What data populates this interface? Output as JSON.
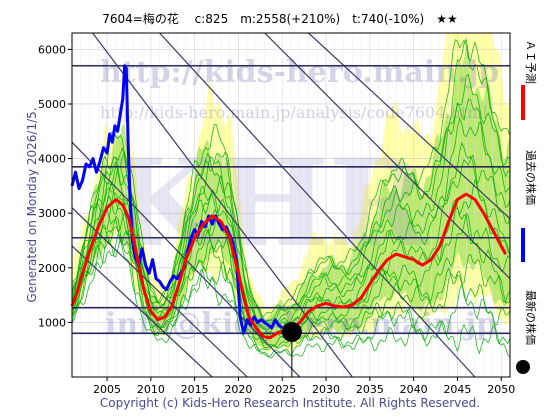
{
  "chart_data": {
    "type": "line",
    "title": "7604=梅の花　 c:825　m:2558(+210%)　t:740(-10%)　★★",
    "xlabel": "",
    "ylabel": "",
    "xlim": [
      2001,
      2051
    ],
    "ylim": [
      0,
      6300
    ],
    "x_ticks": [
      2005,
      2010,
      2015,
      2020,
      2025,
      2030,
      2035,
      2040,
      2045,
      2050
    ],
    "y_ticks": [
      1000,
      2000,
      3000,
      4000,
      5000,
      6000
    ],
    "grid": true,
    "legend_position": "right (vertical)",
    "current_price": 825,
    "current_year": 2026.1,
    "horizontal_levels": [
      5700,
      3850,
      2550,
      1270,
      800
    ],
    "series": [
      {
        "name": "過去の株価",
        "color": "#0000ff",
        "points": [
          [
            2001,
            3500
          ],
          [
            2001.4,
            3750
          ],
          [
            2001.8,
            3450
          ],
          [
            2002.2,
            3600
          ],
          [
            2002.6,
            3900
          ],
          [
            2003,
            3850
          ],
          [
            2003.4,
            4000
          ],
          [
            2003.8,
            3750
          ],
          [
            2004.2,
            3950
          ],
          [
            2004.6,
            4200
          ],
          [
            2005,
            4100
          ],
          [
            2005.3,
            4450
          ],
          [
            2005.6,
            4300
          ],
          [
            2005.9,
            4600
          ],
          [
            2006.2,
            4500
          ],
          [
            2006.5,
            4800
          ],
          [
            2006.8,
            5100
          ],
          [
            2007.0,
            5700
          ],
          [
            2007.2,
            5650
          ],
          [
            2007.4,
            4300
          ],
          [
            2007.6,
            3400
          ],
          [
            2007.9,
            2500
          ],
          [
            2008.2,
            2200
          ],
          [
            2008.6,
            2050
          ],
          [
            2009,
            2350
          ],
          [
            2009.4,
            2050
          ],
          [
            2009.8,
            1900
          ],
          [
            2010.2,
            2150
          ],
          [
            2010.6,
            1800
          ],
          [
            2011,
            1750
          ],
          [
            2011.4,
            1650
          ],
          [
            2011.8,
            1600
          ],
          [
            2012.2,
            1750
          ],
          [
            2012.6,
            1850
          ],
          [
            2013,
            1800
          ],
          [
            2013.4,
            1900
          ],
          [
            2013.8,
            2000
          ],
          [
            2014.2,
            2300
          ],
          [
            2014.6,
            2550
          ],
          [
            2015,
            2700
          ],
          [
            2015.4,
            2600
          ],
          [
            2015.8,
            2850
          ],
          [
            2016.2,
            2750
          ],
          [
            2016.6,
            2950
          ],
          [
            2017,
            2800
          ],
          [
            2017.4,
            2950
          ],
          [
            2017.8,
            2800
          ],
          [
            2018.2,
            2700
          ],
          [
            2018.6,
            2750
          ],
          [
            2019,
            2600
          ],
          [
            2019.4,
            2450
          ],
          [
            2019.8,
            2100
          ],
          [
            2020.2,
            1100
          ],
          [
            2020.6,
            800
          ],
          [
            2021,
            1050
          ],
          [
            2021.4,
            950
          ],
          [
            2021.8,
            1100
          ],
          [
            2022.2,
            1000
          ],
          [
            2022.6,
            1050
          ],
          [
            2023,
            1000
          ],
          [
            2023.4,
            950
          ],
          [
            2023.8,
            900
          ],
          [
            2024.2,
            1050
          ],
          [
            2024.6,
            950
          ],
          [
            2025,
            900
          ]
        ]
      },
      {
        "name": "ＡＩ予測",
        "color": "#ff0000",
        "points": [
          [
            2001,
            1300
          ],
          [
            2001.5,
            1500
          ],
          [
            2002,
            1800
          ],
          [
            2003,
            2300
          ],
          [
            2004,
            2750
          ],
          [
            2005,
            3100
          ],
          [
            2006,
            3250
          ],
          [
            2006.8,
            3150
          ],
          [
            2007.5,
            2900
          ],
          [
            2008,
            2550
          ],
          [
            2008.6,
            2050
          ],
          [
            2009.2,
            1600
          ],
          [
            2010,
            1200
          ],
          [
            2010.8,
            1050
          ],
          [
            2011.6,
            1100
          ],
          [
            2012.4,
            1300
          ],
          [
            2013.2,
            1700
          ],
          [
            2014,
            2150
          ],
          [
            2015,
            2550
          ],
          [
            2016,
            2800
          ],
          [
            2017,
            2950
          ],
          [
            2018,
            2850
          ],
          [
            2019,
            2550
          ],
          [
            2020,
            1900
          ],
          [
            2020.6,
            1450
          ],
          [
            2021.2,
            1100
          ],
          [
            2022,
            900
          ],
          [
            2022.8,
            740
          ],
          [
            2023.6,
            720
          ],
          [
            2024.4,
            800
          ],
          [
            2025.2,
            850
          ],
          [
            2026,
            870
          ],
          [
            2027,
            1000
          ],
          [
            2028,
            1200
          ],
          [
            2029,
            1300
          ],
          [
            2030,
            1350
          ],
          [
            2031,
            1300
          ],
          [
            2032,
            1280
          ],
          [
            2033,
            1320
          ],
          [
            2034,
            1450
          ],
          [
            2035,
            1700
          ],
          [
            2036,
            1950
          ],
          [
            2037,
            2150
          ],
          [
            2038,
            2250
          ],
          [
            2039,
            2200
          ],
          [
            2040,
            2150
          ],
          [
            2041,
            2050
          ],
          [
            2042,
            2150
          ],
          [
            2043,
            2400
          ],
          [
            2044,
            2850
          ],
          [
            2045,
            3250
          ],
          [
            2046,
            3350
          ],
          [
            2047,
            3250
          ],
          [
            2048,
            3000
          ],
          [
            2049,
            2700
          ],
          [
            2050,
            2400
          ],
          [
            2050.5,
            2250
          ]
        ]
      }
    ],
    "legend_entries": [
      {
        "label": "ＡＩ予測",
        "color": "#ff0000"
      },
      {
        "label": "過去の株価",
        "color": "#0000ff"
      },
      {
        "label": "最新の株価",
        "color": "#000000"
      }
    ]
  },
  "watermarks": {
    "url_large": "http://kids-hero.main.jp",
    "url_small": "http://kids-hero.main.jp/analysis/code7604.html",
    "email": "info@kids-hero.main.jp",
    "logo": "KHR"
  },
  "generated_text": "Generated on Monday 2026/1/5.",
  "copyright": "Copyright (c) Kids-Hero Research Institute. All Rights Reserved.",
  "colors": {
    "band_outer": "#ffff99",
    "band_inner": "#99dd55",
    "ensemble": "#00aa00",
    "trend": "#3a3a6a",
    "level": "#2a2a60"
  }
}
